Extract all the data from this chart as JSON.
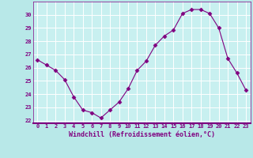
{
  "x": [
    0,
    1,
    2,
    3,
    4,
    5,
    6,
    7,
    8,
    9,
    10,
    11,
    12,
    13,
    14,
    15,
    16,
    17,
    18,
    19,
    20,
    21,
    22,
    23
  ],
  "y": [
    26.6,
    26.2,
    25.8,
    25.1,
    23.8,
    22.8,
    22.6,
    22.2,
    22.8,
    23.4,
    24.4,
    25.8,
    26.5,
    27.7,
    28.4,
    28.85,
    30.1,
    30.4,
    30.4,
    30.1,
    29.0,
    26.7,
    25.6,
    24.3
  ],
  "line_color": "#800080",
  "marker": "D",
  "markersize": 2.5,
  "bg_color": "#b8e8e8",
  "plot_bg_color": "#c8f0f0",
  "grid_color": "#ffffff",
  "xlabel": "Windchill (Refroidissement éolien,°C)",
  "ylim": [
    21.8,
    31.0
  ],
  "xlim": [
    -0.5,
    23.5
  ],
  "yticks": [
    22,
    23,
    24,
    25,
    26,
    27,
    28,
    29,
    30
  ],
  "xticks": [
    0,
    1,
    2,
    3,
    4,
    5,
    6,
    7,
    8,
    9,
    10,
    11,
    12,
    13,
    14,
    15,
    16,
    17,
    18,
    19,
    20,
    21,
    22,
    23
  ],
  "tick_color": "#800080",
  "tick_fontsize": 5.0,
  "xlabel_fontsize": 6.0,
  "spine_color": "#800080",
  "separator_color": "#800080"
}
